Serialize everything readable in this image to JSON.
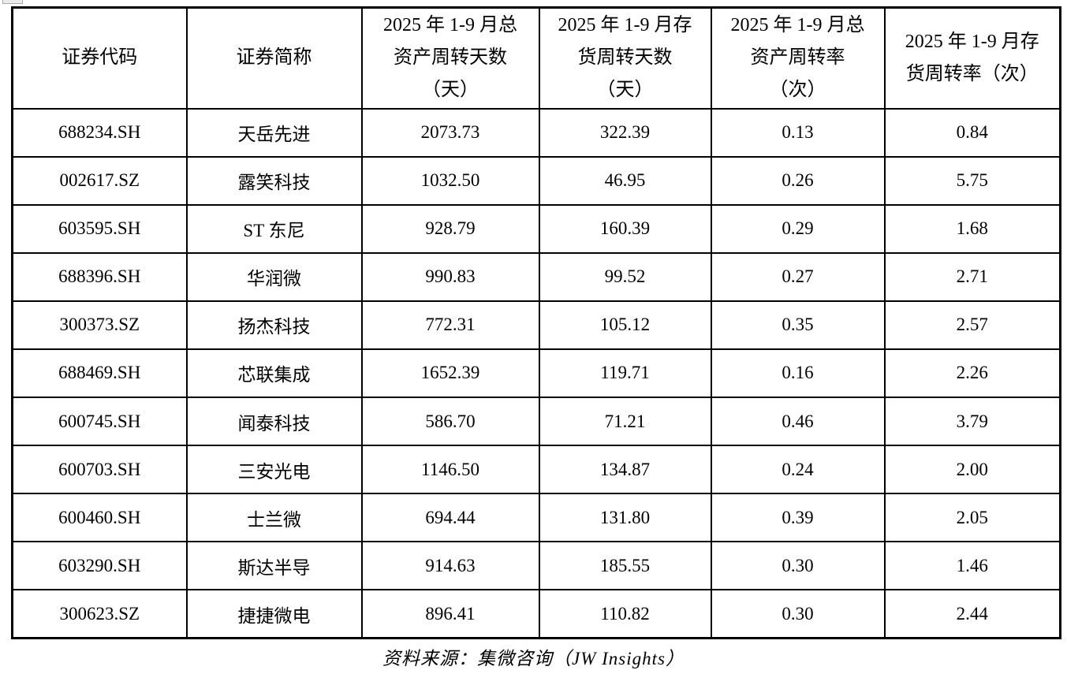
{
  "table": {
    "headers": [
      "证券代码",
      "证券简称",
      "2025 年 1-9 月总\n资产周转天数\n（天）",
      "2025 年 1-9 月存\n货周转天数\n（天）",
      "2025 年 1-9 月总\n资产周转率\n（次）",
      "2025 年 1-9 月存\n货周转率（次）"
    ],
    "rows": [
      [
        "688234.SH",
        "天岳先进",
        "2073.73",
        "322.39",
        "0.13",
        "0.84"
      ],
      [
        "002617.SZ",
        "露笑科技",
        "1032.50",
        "46.95",
        "0.26",
        "5.75"
      ],
      [
        "603595.SH",
        "ST 东尼",
        "928.79",
        "160.39",
        "0.29",
        "1.68"
      ],
      [
        "688396.SH",
        "华润微",
        "990.83",
        "99.52",
        "0.27",
        "2.71"
      ],
      [
        "300373.SZ",
        "扬杰科技",
        "772.31",
        "105.12",
        "0.35",
        "2.57"
      ],
      [
        "688469.SH",
        "芯联集成",
        "1652.39",
        "119.71",
        "0.16",
        "2.26"
      ],
      [
        "600745.SH",
        "闻泰科技",
        "586.70",
        "71.21",
        "0.46",
        "3.79"
      ],
      [
        "600703.SH",
        "三安光电",
        "1146.50",
        "134.87",
        "0.24",
        "2.00"
      ],
      [
        "600460.SH",
        "士兰微",
        "694.44",
        "131.80",
        "0.39",
        "2.05"
      ],
      [
        "603290.SH",
        "斯达半导",
        "914.63",
        "185.55",
        "0.30",
        "1.46"
      ],
      [
        "300623.SZ",
        "捷捷微电",
        "896.41",
        "110.82",
        "0.30",
        "2.44"
      ]
    ]
  },
  "source_note": "资料来源：集微咨询（JW Insights）",
  "colors": {
    "text": "#000000",
    "background": "#ffffff",
    "table_border": "#000000"
  }
}
